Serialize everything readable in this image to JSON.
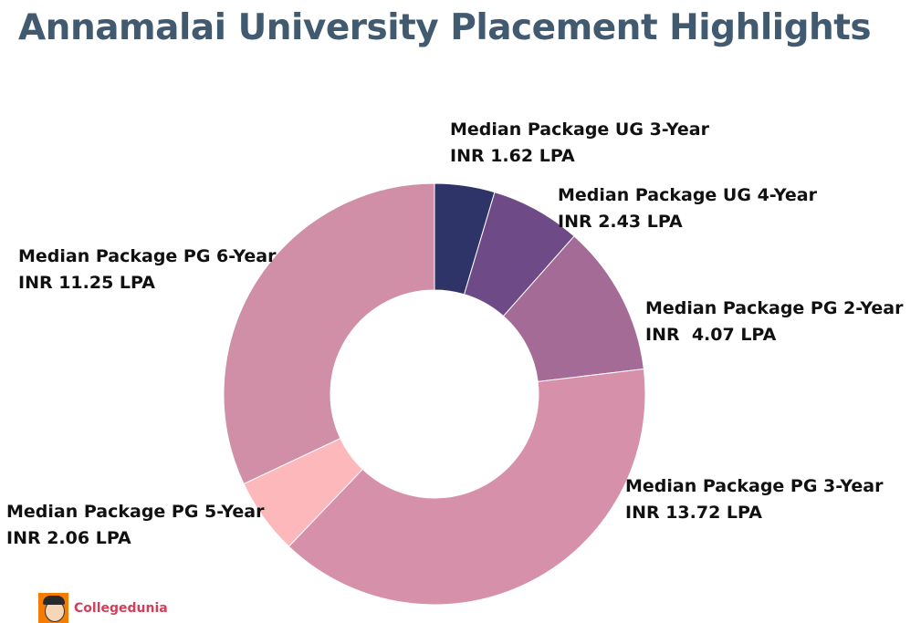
{
  "chart_data": {
    "type": "pie",
    "variant": "donut",
    "title": "Annamalai University Placement Highlights",
    "unit": "LPA",
    "slices": [
      {
        "label": "Median Package UG 3-Year",
        "value_text": "INR 1.62 LPA",
        "value": 1.62,
        "color": "#2e3468"
      },
      {
        "label": "Median Package UG 4-Year",
        "value_text": "INR 2.43 LPA",
        "value": 2.43,
        "color": "#6e4a86"
      },
      {
        "label": "Median Package PG 2-Year",
        "value_text": "INR  4.07 LPA",
        "value": 4.07,
        "color": "#a56b97"
      },
      {
        "label": "Median Package PG 3-Year",
        "value_text": "INR 13.72 LPA",
        "value": 13.72,
        "color": "#d690aa"
      },
      {
        "label": "Median Package PG 5-Year",
        "value_text": "INR 2.06 LPA",
        "value": 2.06,
        "color": "#fdb8bc"
      },
      {
        "label": "Median Package PG 6-Year",
        "value_text": "INR 11.25 LPA",
        "value": 11.25,
        "color": "#d08fa6"
      }
    ],
    "start_angle": "top",
    "direction": "clockwise",
    "legend": "none"
  },
  "branding": {
    "logo_text": "Collegedunia",
    "logo_color": "#f47c00",
    "text_color": "#d0405a"
  }
}
